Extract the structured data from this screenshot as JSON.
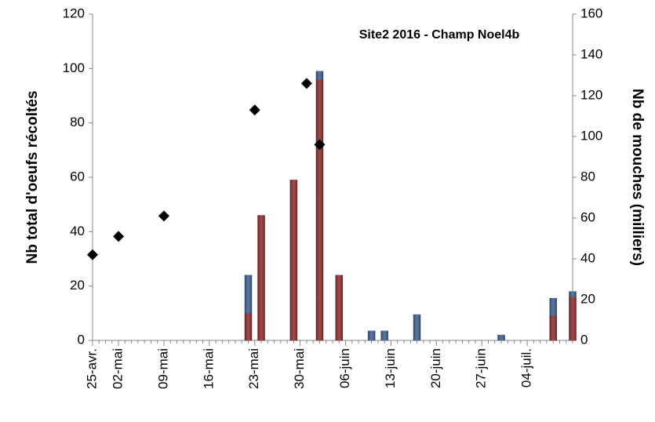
{
  "chart_data": {
    "type": "bar",
    "title": "Site2 2016 - Champ Noel4b",
    "ylabel": "Nb total d'oeufs récoltés",
    "y2label": "Nb de mouches (milliers)",
    "categories": [
      "25-avr.",
      null,
      null,
      null,
      "02-mai",
      null,
      null,
      null,
      null,
      null,
      null,
      "09-mai",
      null,
      null,
      null,
      null,
      null,
      null,
      "16-mai",
      null,
      null,
      null,
      null,
      null,
      null,
      "23-mai",
      null,
      null,
      null,
      null,
      null,
      null,
      "30-mai",
      null,
      null,
      null,
      null,
      null,
      null,
      "06-juin",
      null,
      null,
      null,
      null,
      null,
      null,
      "13-juin",
      null,
      null,
      null,
      null,
      null,
      null,
      "20-juin",
      null,
      null,
      null,
      null,
      null,
      null,
      "27-juin",
      null,
      null,
      null,
      null,
      null,
      null,
      "04-juil.",
      null,
      null,
      null,
      null,
      null,
      null,
      null
    ],
    "series": [
      {
        "type": "bar",
        "color": "#8c2b2b",
        "values": [
          null,
          null,
          null,
          null,
          null,
          null,
          null,
          null,
          null,
          null,
          null,
          null,
          null,
          null,
          null,
          null,
          null,
          null,
          null,
          null,
          null,
          null,
          null,
          null,
          10,
          null,
          46,
          null,
          null,
          null,
          null,
          59,
          null,
          null,
          null,
          96,
          null,
          null,
          24,
          null,
          null,
          null,
          null,
          null,
          null,
          null,
          null,
          null,
          null,
          null,
          null,
          null,
          null,
          null,
          null,
          null,
          null,
          null,
          null,
          null,
          null,
          null,
          null,
          null,
          null,
          null,
          null,
          null,
          null,
          null,
          null,
          9,
          null,
          null,
          16
        ]
      },
      {
        "type": "bar",
        "color": "#3b5e8c",
        "values": [
          null,
          null,
          null,
          null,
          null,
          null,
          null,
          null,
          null,
          null,
          null,
          null,
          null,
          null,
          null,
          null,
          null,
          null,
          null,
          null,
          null,
          null,
          null,
          null,
          14,
          null,
          null,
          null,
          null,
          null,
          null,
          null,
          null,
          null,
          null,
          3,
          null,
          null,
          null,
          null,
          null,
          null,
          null,
          3.5,
          null,
          3.5,
          null,
          null,
          null,
          null,
          9.5,
          null,
          null,
          null,
          null,
          null,
          null,
          null,
          null,
          null,
          null,
          null,
          null,
          2,
          null,
          null,
          null,
          null,
          null,
          null,
          null,
          6.5,
          null,
          null,
          2
        ]
      },
      {
        "type": "scatter",
        "axis": "y2",
        "color": "#000000",
        "values": [
          42,
          null,
          null,
          null,
          51,
          null,
          null,
          null,
          null,
          null,
          null,
          61,
          null,
          null,
          null,
          null,
          null,
          null,
          null,
          null,
          null,
          null,
          null,
          null,
          null,
          113,
          null,
          null,
          null,
          null,
          null,
          null,
          null,
          126,
          null,
          96,
          null,
          null,
          null,
          null,
          null,
          null,
          null,
          null,
          null,
          null,
          null,
          null,
          null,
          null,
          null,
          null,
          null,
          null,
          null,
          null,
          null,
          null,
          null,
          null,
          null,
          null,
          null,
          null,
          null,
          null,
          null,
          null,
          null,
          null,
          null,
          null,
          null,
          null,
          null
        ]
      }
    ],
    "ylim": [
      0,
      120
    ],
    "yticks": [
      0,
      20,
      40,
      60,
      80,
      100,
      120
    ],
    "y2lim": [
      0,
      160
    ],
    "y2ticks": [
      0,
      20,
      40,
      60,
      80,
      100,
      120,
      140,
      160
    ]
  }
}
